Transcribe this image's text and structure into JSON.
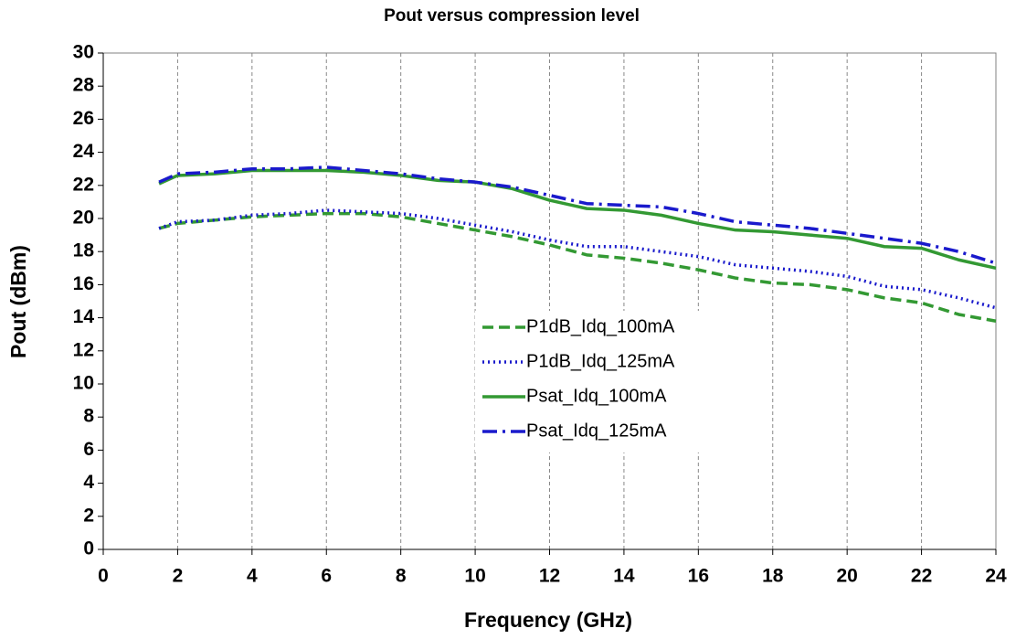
{
  "chart_data": {
    "type": "line",
    "title": "Pout versus compression level",
    "xlabel": "Frequency (GHz)",
    "ylabel": "Pout (dBm)",
    "x": [
      1.5,
      2,
      3,
      4,
      5,
      6,
      7,
      8,
      9,
      10,
      11,
      12,
      13,
      14,
      15,
      16,
      17,
      18,
      19,
      20,
      21,
      22,
      23,
      24
    ],
    "series": [
      {
        "name": "P1dB_Idq_100mA",
        "color": "#339933",
        "dash": "dashed",
        "values": [
          19.4,
          19.7,
          19.9,
          20.1,
          20.2,
          20.3,
          20.3,
          20.1,
          19.7,
          19.3,
          18.9,
          18.4,
          17.8,
          17.6,
          17.3,
          16.9,
          16.4,
          16.1,
          16.0,
          15.7,
          15.2,
          14.9,
          14.2,
          13.8
        ]
      },
      {
        "name": "P1dB_Idq_125mA",
        "color": "#1a1acc",
        "dash": "dotted",
        "values": [
          19.4,
          19.8,
          19.9,
          20.2,
          20.3,
          20.5,
          20.4,
          20.3,
          20.0,
          19.6,
          19.2,
          18.7,
          18.3,
          18.3,
          18.0,
          17.7,
          17.2,
          17.0,
          16.8,
          16.5,
          15.9,
          15.7,
          15.2,
          14.6
        ]
      },
      {
        "name": "Psat_Idq_100mA",
        "color": "#339933",
        "dash": "solid",
        "values": [
          22.1,
          22.6,
          22.7,
          22.9,
          22.9,
          22.9,
          22.8,
          22.6,
          22.3,
          22.2,
          21.8,
          21.1,
          20.6,
          20.5,
          20.2,
          19.7,
          19.3,
          19.2,
          19.0,
          18.8,
          18.3,
          18.2,
          17.5,
          17.0
        ]
      },
      {
        "name": "Psat_Idq_125mA",
        "color": "#1a1acc",
        "dash": "dashdot",
        "values": [
          22.2,
          22.7,
          22.8,
          23.0,
          23.0,
          23.1,
          22.9,
          22.7,
          22.4,
          22.2,
          21.9,
          21.4,
          20.9,
          20.8,
          20.7,
          20.3,
          19.8,
          19.6,
          19.4,
          19.1,
          18.8,
          18.5,
          18.0,
          17.3
        ]
      }
    ],
    "xlim": [
      0,
      24
    ],
    "xticks": [
      0,
      2,
      4,
      6,
      8,
      10,
      12,
      14,
      16,
      18,
      20,
      22,
      24
    ],
    "ylim": [
      0,
      30
    ],
    "yticks": [
      0,
      2,
      4,
      6,
      8,
      10,
      12,
      14,
      16,
      18,
      20,
      22,
      24,
      26,
      28,
      30
    ],
    "grid": "x"
  }
}
